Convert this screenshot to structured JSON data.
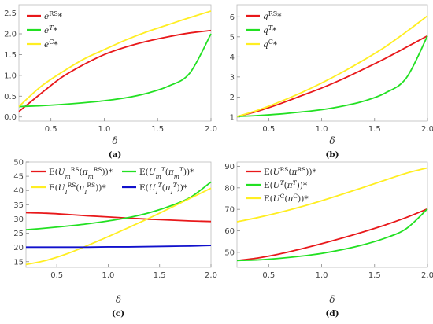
{
  "colors": {
    "rs": "#e8181a",
    "t": "#22e022",
    "c": "#ffee22",
    "blue": "#1111cc"
  },
  "chart_data": [
    {
      "type": "line",
      "caption": "(a)",
      "xlabel": "δ",
      "xlim": [
        0.2,
        2.0
      ],
      "ylim": [
        -0.1,
        2.7
      ],
      "xticks": [
        "0.5",
        "1.0",
        "1.5",
        "2.0"
      ],
      "yticks": [
        "0.0",
        "0.5",
        "1.0",
        "1.5",
        "2.0",
        "2.5"
      ],
      "x": [
        0.2,
        0.4,
        0.6,
        0.8,
        1.0,
        1.2,
        1.4,
        1.6,
        1.8,
        2.0
      ],
      "series": [
        {
          "name": "eRS*",
          "legend": {
            "base": "e",
            "sup": "RS",
            "tail": "*"
          },
          "color_key": "rs",
          "values": [
            0.13,
            0.55,
            0.95,
            1.25,
            1.5,
            1.68,
            1.82,
            1.93,
            2.02,
            2.08
          ]
        },
        {
          "name": "eT*",
          "legend": {
            "base": "e",
            "sup": "T",
            "tail": "*",
            "sup_italic": true
          },
          "color_key": "t",
          "values": [
            0.25,
            0.27,
            0.3,
            0.34,
            0.39,
            0.46,
            0.57,
            0.74,
            1.05,
            2.0
          ]
        },
        {
          "name": "eC*",
          "legend": {
            "base": "e",
            "sup": "C",
            "tail": "*"
          },
          "color_key": "c",
          "values": [
            0.25,
            0.72,
            1.07,
            1.38,
            1.62,
            1.85,
            2.05,
            2.22,
            2.39,
            2.55
          ]
        }
      ]
    },
    {
      "type": "line",
      "caption": "(b)",
      "xlabel": "δ",
      "xlim": [
        0.2,
        2.0
      ],
      "ylim": [
        0.8,
        6.6
      ],
      "xticks": [
        "0.5",
        "1.0",
        "1.5",
        "2.0"
      ],
      "yticks": [
        "1",
        "2",
        "3",
        "4",
        "5",
        "6"
      ],
      "x": [
        0.2,
        0.4,
        0.6,
        0.8,
        1.0,
        1.2,
        1.4,
        1.6,
        1.8,
        2.0
      ],
      "series": [
        {
          "name": "qRS*",
          "legend": {
            "base": "q",
            "sup": "RS",
            "tail": "*"
          },
          "color_key": "rs",
          "values": [
            1.03,
            1.3,
            1.65,
            2.05,
            2.45,
            2.9,
            3.4,
            3.92,
            4.48,
            5.05
          ]
        },
        {
          "name": "qT*",
          "legend": {
            "base": "q",
            "sup": "T",
            "tail": "*",
            "sup_italic": true
          },
          "color_key": "t",
          "values": [
            1.03,
            1.08,
            1.15,
            1.25,
            1.37,
            1.55,
            1.8,
            2.2,
            2.95,
            5.05
          ]
        },
        {
          "name": "qC*",
          "legend": {
            "base": "q",
            "sup": "C",
            "tail": "*"
          },
          "color_key": "c",
          "values": [
            1.03,
            1.35,
            1.75,
            2.2,
            2.7,
            3.25,
            3.85,
            4.5,
            5.25,
            6.05
          ]
        }
      ]
    },
    {
      "type": "line",
      "caption": "(c)",
      "xlabel": "δ",
      "xlim": [
        0.2,
        2.0
      ],
      "ylim": [
        13,
        50
      ],
      "xticks": [
        "0.5",
        "1.0",
        "1.5",
        "2.0"
      ],
      "yticks": [
        "15",
        "20",
        "25",
        "30",
        "35",
        "40",
        "45",
        "50"
      ],
      "x": [
        0.2,
        0.4,
        0.6,
        0.8,
        1.0,
        1.2,
        1.4,
        1.6,
        1.8,
        2.0
      ],
      "series": [
        {
          "name": "E(UmRS(πmRS))*",
          "legend": {
            "text": "E(U_m^RS(π_m^RS))*"
          },
          "color_key": "rs",
          "values": [
            32.2,
            32.0,
            31.6,
            31.1,
            30.7,
            30.3,
            29.9,
            29.6,
            29.3,
            29.1
          ]
        },
        {
          "name": "E(UmT(πmT))*",
          "legend": {
            "text": "E(U_m^T(π_m^T))*"
          },
          "color_key": "t",
          "values": [
            26.2,
            26.8,
            27.5,
            28.3,
            29.3,
            30.5,
            32.2,
            34.5,
            37.6,
            43.0
          ]
        },
        {
          "name": "E(UIRS(πIRS))*",
          "legend": {
            "text": "E(U_I^RS(π_I^RS))*"
          },
          "color_key": "c",
          "values": [
            14.0,
            15.5,
            17.8,
            20.7,
            23.8,
            27.0,
            30.3,
            33.8,
            37.3,
            40.8
          ]
        },
        {
          "name": "E(UIT(πIT))*",
          "legend": {
            "text": "E(U_I^T(π_I^T))*"
          },
          "color_key": "blue",
          "values": [
            20.1,
            20.1,
            20.1,
            20.1,
            20.2,
            20.2,
            20.3,
            20.4,
            20.5,
            20.7
          ]
        }
      ]
    },
    {
      "type": "line",
      "caption": "(d)",
      "xlabel": "δ",
      "xlim": [
        0.2,
        2.0
      ],
      "ylim": [
        43,
        92
      ],
      "xticks": [
        "0.5",
        "1.0",
        "1.5",
        "2.0"
      ],
      "yticks": [
        "50",
        "60",
        "70",
        "80",
        "90"
      ],
      "x": [
        0.2,
        0.4,
        0.6,
        0.8,
        1.0,
        1.2,
        1.4,
        1.6,
        1.8,
        2.0
      ],
      "series": [
        {
          "name": "E(URS(πRS))*",
          "legend": {
            "text": "E(U^RS(π^RS))*"
          },
          "color_key": "rs",
          "values": [
            46.2,
            47.4,
            49.2,
            51.5,
            54.0,
            56.7,
            59.6,
            62.7,
            66.2,
            70.2
          ]
        },
        {
          "name": "E(UT(πT))*",
          "legend": {
            "text": "E(U^T(π^T))*"
          },
          "color_key": "t",
          "values": [
            46.2,
            46.5,
            47.2,
            48.2,
            49.5,
            51.3,
            53.6,
            56.6,
            61.0,
            70.2
          ]
        },
        {
          "name": "E(UC(πC))*",
          "legend": {
            "text": "E(U^C(π^C))*"
          },
          "color_key": "c",
          "values": [
            64.2,
            66.2,
            68.5,
            71.1,
            74.0,
            77.1,
            80.3,
            83.6,
            86.8,
            89.3
          ]
        }
      ]
    }
  ]
}
